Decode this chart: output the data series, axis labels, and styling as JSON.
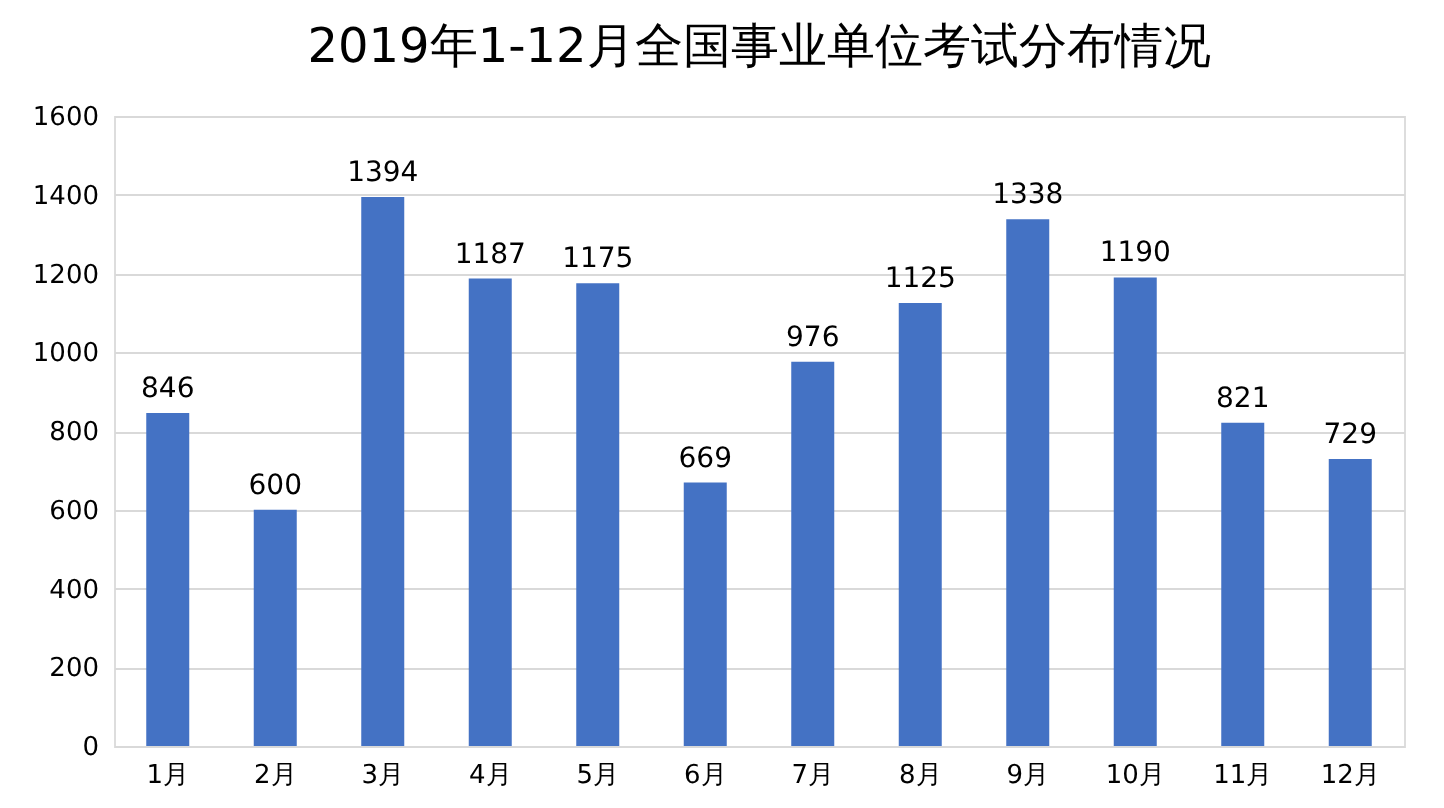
{
  "chart_data": {
    "type": "bar",
    "title": "2019年1-12月全国事业单位考试分布情况",
    "categories": [
      "1月",
      "2月",
      "3月",
      "4月",
      "5月",
      "6月",
      "7月",
      "8月",
      "9月",
      "10月",
      "11月",
      "12月"
    ],
    "values": [
      846,
      600,
      1394,
      1187,
      1175,
      669,
      976,
      1125,
      1338,
      1190,
      821,
      729
    ],
    "color": "#4472c4",
    "ylim": [
      0,
      1600
    ],
    "yticks": [
      0,
      200,
      400,
      600,
      800,
      1000,
      1200,
      1400,
      1600
    ],
    "grid": "y",
    "data_labels": true
  }
}
